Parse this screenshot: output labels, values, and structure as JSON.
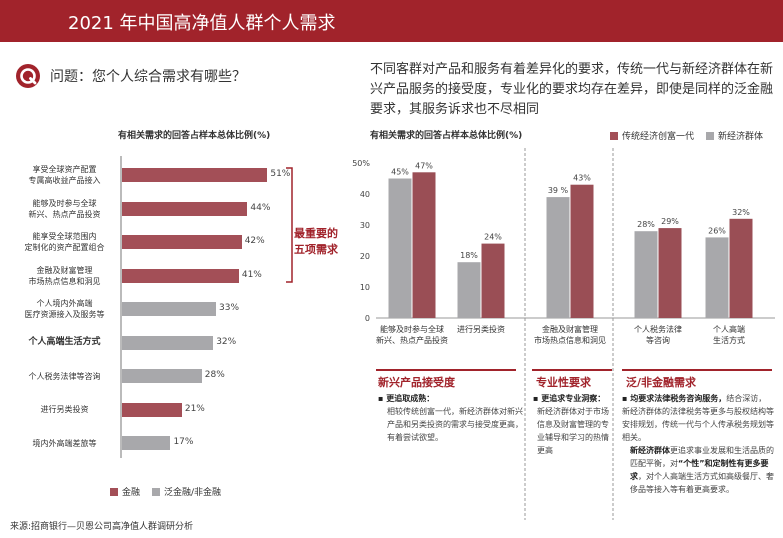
{
  "header": {
    "title": "2021 年中国高净值人群个人需求"
  },
  "question": {
    "text": "问题：您个人综合需求有哪些？"
  },
  "intro": {
    "text": "不同客群对产品和服务有着差异化的要求，传统一代与新经济群体在新兴产品服务的接受度，专业化的要求均存在差异，即使是同样的泛金融要求，其服务诉求也不尽相同"
  },
  "callout": {
    "line1": "最重要的",
    "line2": "五项需求"
  },
  "source": {
    "text": "来源:招商银行—贝恩公司高净值人群调研分析"
  },
  "colors": {
    "brand": "#a1232b",
    "finance": "#a34f57",
    "nonfinance": "#a8a8ab",
    "new_economy": "#9a4e55",
    "traditional": "#a8a8ab"
  },
  "chart_data": [
    {
      "type": "bar",
      "orientation": "horizontal",
      "title": "有相关需求的回答占样本总体比例(%)",
      "categories": [
        [
          "享受全球资产配置",
          "专属高收益产品接入"
        ],
        [
          "能够及时参与全球",
          "新兴、热点产品投资"
        ],
        [
          "能享受全球范围内",
          "定制化的资产配置组合"
        ],
        [
          "金融及财富管理",
          "市场热点信息和洞见"
        ],
        [
          "个人境内外高端",
          "医疗资源接入及服务等"
        ],
        [
          "个人高端生活方式"
        ],
        [
          "个人税务法律等咨询"
        ],
        [
          "进行另类投资"
        ],
        [
          "境内外高端差旅等"
        ]
      ],
      "values": [
        51,
        44,
        42,
        41,
        33,
        32,
        28,
        21,
        17
      ],
      "value_labels": [
        "51%",
        "44%",
        "42%",
        "41%",
        "33%",
        "32%",
        "28%",
        "21%",
        "17%"
      ],
      "group": [
        "finance",
        "finance",
        "finance",
        "finance",
        "nonfinance",
        "nonfinance",
        "nonfinance",
        "finance",
        "nonfinance"
      ],
      "bold_index": 5,
      "legend": [
        {
          "key": "finance",
          "label": "金融"
        },
        {
          "key": "nonfinance",
          "label": "泛金融/非金融"
        }
      ],
      "xlim": [
        0,
        100
      ],
      "legend_position": "bottom-left"
    },
    {
      "type": "bar",
      "orientation": "vertical",
      "title": "有相关需求的回答占样本总体比例(%)",
      "categories": [
        [
          "能够及时参与全球",
          "新兴、热点产品投资"
        ],
        [
          "进行另类投资"
        ],
        [
          "金融及财富管理",
          "市场热点信息和洞见"
        ],
        [
          "个人税务法律",
          "等咨询"
        ],
        [
          "个人高端",
          "生活方式"
        ]
      ],
      "series": [
        {
          "name": "传统经济创富一代",
          "key": "traditional",
          "values": [
            45,
            18,
            39,
            28,
            26
          ],
          "labels": [
            "45%",
            "18%",
            "39 %",
            "28%",
            "26%"
          ]
        },
        {
          "name": "新经济群体",
          "key": "new_economy",
          "values": [
            47,
            24,
            43,
            29,
            32
          ],
          "labels": [
            "47%",
            "24%",
            "43%",
            "29%",
            "32%"
          ]
        }
      ],
      "yticks": [
        "50%",
        "40",
        "30",
        "20",
        "10",
        "0"
      ],
      "ylim": [
        0,
        50
      ],
      "legend_position": "top-right"
    }
  ],
  "sections": [
    {
      "title": "新兴产品接受度",
      "sub": "▪ 更追取成熟：",
      "text": "相较传统创富一代，新经济群体对新兴产品和另类投资的需求与接受度更高，有着尝试欲望。"
    },
    {
      "title": "专业性要求",
      "sub": "▪ 更追求专业洞察：",
      "text": "新经济群体对于市场信息及财富管理的专业辅导和学习的热情更高"
    },
    {
      "title": "泛/非金融需求",
      "p1_bold": "▪ 均要求法律税务咨询服务，",
      "p1": "结合深访，新经济群体的法律税务等更多与股权结构等安排规划，传统一代与个人传承税务规划等相关。",
      "p2_bold": "新经济群体",
      "p2a": "更追求事业发展和生活品质的匹配平衡，对",
      "p2_bold2": "“个性”和定制性有更多要求",
      "p2b": "，对个人高端生活方式如高级餐厅、奢侈品等接入等有着更高要求。"
    }
  ]
}
